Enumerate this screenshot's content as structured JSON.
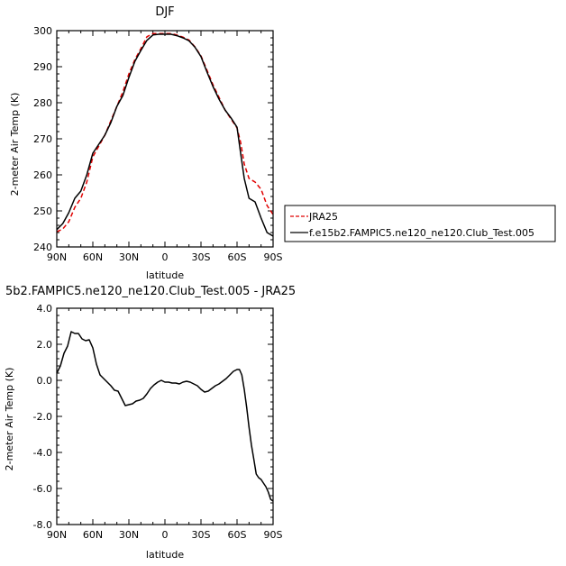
{
  "chart_data": [
    {
      "type": "line",
      "title": "DJF",
      "xlabel": "latitude",
      "ylabel": "2-meter Air Temp (K)",
      "xlim": [
        90,
        -90
      ],
      "ylim": [
        240,
        300
      ],
      "xticks": [
        "90N",
        "60N",
        "30N",
        "0",
        "30S",
        "60S",
        "90S"
      ],
      "yticks": [
        "240",
        "250",
        "260",
        "270",
        "280",
        "290",
        "300"
      ],
      "legend_position": "right",
      "series": [
        {
          "name": "JRA25",
          "color": "#e00000",
          "dash": "dashed",
          "x": [
            90,
            85,
            80,
            75,
            70,
            65,
            60,
            55,
            50,
            45,
            40,
            35,
            30,
            25,
            20,
            15,
            10,
            5,
            0,
            -5,
            -10,
            -15,
            -20,
            -25,
            -30,
            -35,
            -40,
            -45,
            -50,
            -55,
            -60,
            -63,
            -66,
            -70,
            -75,
            -80,
            -85,
            -90
          ],
          "y": [
            244.2,
            245,
            247,
            251,
            253.5,
            258,
            265,
            268,
            271,
            275,
            279,
            283,
            288,
            292,
            295,
            298.3,
            299.2,
            299.2,
            299.2,
            299.2,
            298.8,
            298.2,
            297.4,
            295.5,
            293,
            289,
            285,
            281.5,
            278,
            275.5,
            273,
            269,
            263,
            259,
            258,
            256,
            251.5,
            249
          ]
        },
        {
          "name": "f.e15b2.FAMPIC5.ne120_ne120.Club_Test.005",
          "color": "#000000",
          "dash": "solid",
          "x": [
            90,
            85,
            80,
            75,
            70,
            65,
            60,
            55,
            50,
            45,
            40,
            35,
            30,
            25,
            20,
            15,
            10,
            5,
            0,
            -5,
            -10,
            -15,
            -20,
            -25,
            -30,
            -35,
            -40,
            -45,
            -50,
            -55,
            -60,
            -63,
            -66,
            -70,
            -75,
            -80,
            -85,
            -90
          ],
          "y": [
            244.8,
            246.5,
            249.5,
            253.5,
            255.5,
            260,
            266,
            268.5,
            271,
            274.5,
            279,
            282,
            287,
            291.5,
            294.5,
            297.3,
            298.8,
            299,
            299,
            299,
            298.6,
            298,
            297.2,
            295.4,
            292.8,
            288.5,
            284.5,
            281,
            278,
            275.8,
            273.2,
            266,
            259,
            253.5,
            252.5,
            248,
            244,
            243
          ]
        }
      ]
    },
    {
      "type": "line",
      "title": "5b2.FAMPIC5.ne120_ne120.Club_Test.005 - JRA25",
      "xlabel": "latitude",
      "ylabel": "2-meter Air Temp (K)",
      "xlim": [
        90,
        -90
      ],
      "ylim": [
        -8,
        4
      ],
      "xticks": [
        "90N",
        "60N",
        "30N",
        "0",
        "30S",
        "60S",
        "90S"
      ],
      "yticks": [
        "-8.0",
        "-6.0",
        "-4.0",
        "-2.0",
        "0.0",
        "2.0",
        "4.0"
      ],
      "series": [
        {
          "color": "#000000",
          "dash": "solid",
          "x": [
            90,
            87,
            84,
            81,
            78,
            75,
            72,
            69,
            66,
            63,
            60,
            57,
            54,
            51,
            48,
            45,
            42,
            39,
            36,
            33,
            30,
            27,
            24,
            21,
            18,
            15,
            12,
            9,
            6,
            3,
            0,
            -3,
            -6,
            -9,
            -12,
            -15,
            -18,
            -21,
            -24,
            -27,
            -30,
            -33,
            -36,
            -39,
            -42,
            -45,
            -48,
            -51,
            -54,
            -57,
            -60,
            -62,
            -64,
            -66,
            -68,
            -70,
            -72,
            -74,
            -76,
            -78,
            -80,
            -82,
            -84,
            -86,
            -88,
            -90
          ],
          "y": [
            0.4,
            0.8,
            1.5,
            1.9,
            2.7,
            2.6,
            2.6,
            2.3,
            2.2,
            2.25,
            1.8,
            0.9,
            0.3,
            0.1,
            -0.1,
            -0.3,
            -0.55,
            -0.6,
            -1.0,
            -1.4,
            -1.35,
            -1.3,
            -1.15,
            -1.1,
            -1.0,
            -0.75,
            -0.45,
            -0.25,
            -0.1,
            0.0,
            -0.1,
            -0.1,
            -0.15,
            -0.15,
            -0.2,
            -0.1,
            -0.05,
            -0.1,
            -0.2,
            -0.3,
            -0.5,
            -0.65,
            -0.6,
            -0.45,
            -0.3,
            -0.2,
            -0.05,
            0.1,
            0.3,
            0.5,
            0.6,
            0.6,
            0.3,
            -0.5,
            -1.5,
            -2.6,
            -3.6,
            -4.4,
            -5.2,
            -5.4,
            -5.5,
            -5.7,
            -5.9,
            -6.2,
            -6.6,
            -6.7
          ]
        }
      ]
    }
  ]
}
